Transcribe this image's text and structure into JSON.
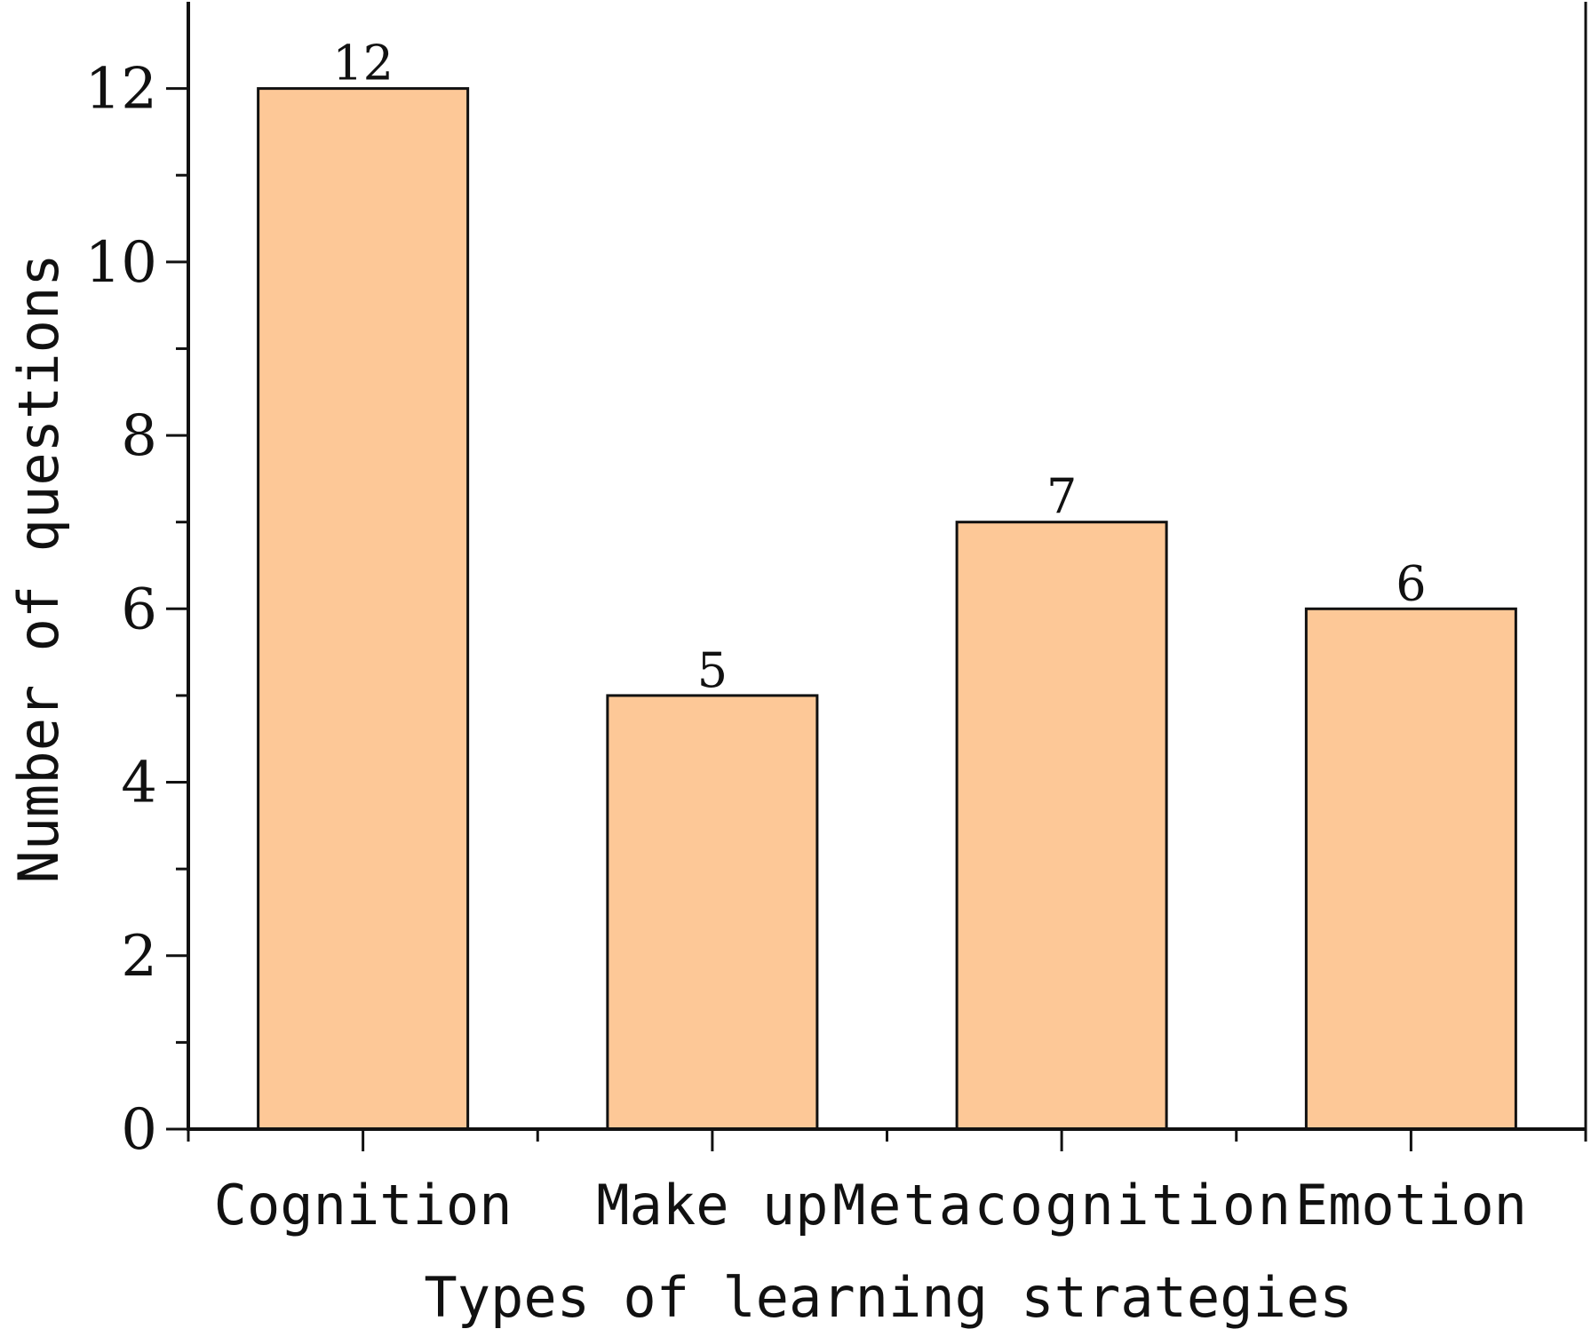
{
  "chart_data": {
    "type": "bar",
    "categories": [
      "Cognition",
      "Make up",
      "Metacognition",
      "Emotion"
    ],
    "values": [
      12,
      5,
      7,
      6
    ],
    "data_labels": [
      "12",
      "5",
      "7",
      "6"
    ],
    "xlabel": "Types of learning strategies",
    "ylabel": "Number of questions",
    "ylim": [
      0,
      13
    ],
    "yticks": [
      0,
      2,
      4,
      6,
      8,
      10,
      12
    ],
    "ytick_labels": [
      "0",
      "2",
      "4",
      "6",
      "8",
      "10",
      "12"
    ],
    "grid": false,
    "bar_color": "#FDC897",
    "bar_edge_color": "#111111"
  }
}
